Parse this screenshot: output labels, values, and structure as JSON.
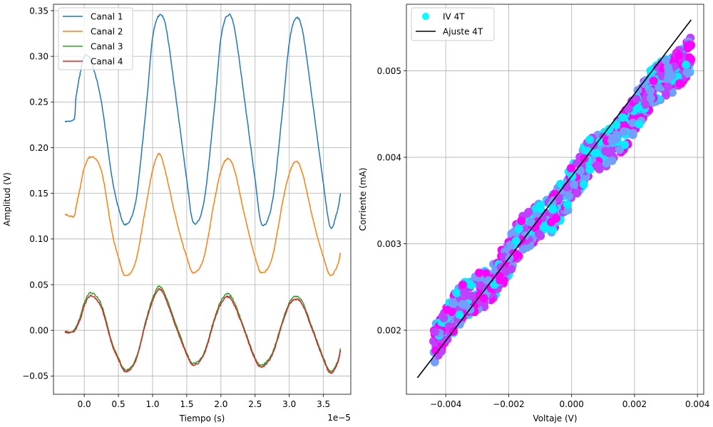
{
  "chart_data": [
    {
      "type": "line",
      "xlabel": "Tiempo (s)",
      "ylabel": "Amplitud (V)",
      "x_offset_label": "1e−5",
      "xlim": [
        -0.45,
        3.9
      ],
      "ylim": [
        -0.07,
        0.357
      ],
      "x_ticks": [
        0.0,
        0.5,
        1.0,
        1.5,
        2.0,
        2.5,
        3.0,
        3.5
      ],
      "x_tick_labels": [
        "0.0",
        "0.5",
        "1.0",
        "1.5",
        "2.0",
        "2.5",
        "3.0",
        "3.5"
      ],
      "y_ticks": [
        -0.05,
        0.0,
        0.05,
        0.1,
        0.15,
        0.2,
        0.25,
        0.3,
        0.35
      ],
      "y_tick_labels": [
        "−0.05",
        "0.00",
        "0.05",
        "0.10",
        "0.15",
        "0.20",
        "0.25",
        "0.30",
        "0.35"
      ],
      "grid": true,
      "legend_position": "top-left",
      "series": [
        {
          "name": "Canal 1",
          "color": "#1f77b4",
          "points": [
            [
              -0.28,
              0.229
            ],
            [
              -0.15,
              0.231
            ],
            [
              -0.12,
              0.255
            ],
            [
              -0.05,
              0.285
            ],
            [
              0.0,
              0.3
            ],
            [
              0.1,
              0.295
            ],
            [
              0.25,
              0.25
            ],
            [
              0.4,
              0.17
            ],
            [
              0.5,
              0.135
            ],
            [
              0.6,
              0.116
            ],
            [
              0.75,
              0.14
            ],
            [
              0.9,
              0.24
            ],
            [
              1.0,
              0.32
            ],
            [
              1.1,
              0.345
            ],
            [
              1.2,
              0.33
            ],
            [
              1.35,
              0.25
            ],
            [
              1.5,
              0.165
            ],
            [
              1.6,
              0.118
            ],
            [
              1.75,
              0.14
            ],
            [
              1.9,
              0.24
            ],
            [
              2.0,
              0.32
            ],
            [
              2.1,
              0.345
            ],
            [
              2.2,
              0.33
            ],
            [
              2.35,
              0.25
            ],
            [
              2.5,
              0.165
            ],
            [
              2.6,
              0.116
            ],
            [
              2.75,
              0.14
            ],
            [
              2.9,
              0.24
            ],
            [
              3.0,
              0.315
            ],
            [
              3.1,
              0.342
            ],
            [
              3.2,
              0.325
            ],
            [
              3.35,
              0.245
            ],
            [
              3.5,
              0.16
            ],
            [
              3.6,
              0.113
            ],
            [
              3.7,
              0.13
            ],
            [
              3.75,
              0.15
            ]
          ]
        },
        {
          "name": "Canal 2",
          "color": "#ff7f0e",
          "points": [
            [
              -0.28,
              0.127
            ],
            [
              -0.15,
              0.125
            ],
            [
              -0.12,
              0.135
            ],
            [
              -0.05,
              0.16
            ],
            [
              0.0,
              0.178
            ],
            [
              0.1,
              0.19
            ],
            [
              0.25,
              0.175
            ],
            [
              0.4,
              0.11
            ],
            [
              0.5,
              0.08
            ],
            [
              0.6,
              0.06
            ],
            [
              0.75,
              0.075
            ],
            [
              0.9,
              0.135
            ],
            [
              1.0,
              0.175
            ],
            [
              1.1,
              0.193
            ],
            [
              1.2,
              0.17
            ],
            [
              1.35,
              0.12
            ],
            [
              1.5,
              0.08
            ],
            [
              1.6,
              0.063
            ],
            [
              1.75,
              0.08
            ],
            [
              1.9,
              0.14
            ],
            [
              2.0,
              0.175
            ],
            [
              2.1,
              0.188
            ],
            [
              2.2,
              0.175
            ],
            [
              2.35,
              0.125
            ],
            [
              2.5,
              0.08
            ],
            [
              2.6,
              0.063
            ],
            [
              2.75,
              0.08
            ],
            [
              2.9,
              0.14
            ],
            [
              3.0,
              0.172
            ],
            [
              3.1,
              0.185
            ],
            [
              3.2,
              0.17
            ],
            [
              3.35,
              0.12
            ],
            [
              3.5,
              0.08
            ],
            [
              3.6,
              0.06
            ],
            [
              3.7,
              0.07
            ],
            [
              3.75,
              0.085
            ]
          ]
        },
        {
          "name": "Canal 3",
          "color": "#2ca02c",
          "points": [
            [
              -0.28,
              -0.001
            ],
            [
              -0.15,
              0.0
            ],
            [
              -0.05,
              0.017
            ],
            [
              0.0,
              0.03
            ],
            [
              0.1,
              0.041
            ],
            [
              0.25,
              0.028
            ],
            [
              0.4,
              -0.012
            ],
            [
              0.5,
              -0.03
            ],
            [
              0.6,
              -0.043
            ],
            [
              0.75,
              -0.032
            ],
            [
              0.9,
              0.01
            ],
            [
              1.0,
              0.035
            ],
            [
              1.1,
              0.048
            ],
            [
              1.2,
              0.036
            ],
            [
              1.35,
              0.005
            ],
            [
              1.5,
              -0.025
            ],
            [
              1.6,
              -0.036
            ],
            [
              1.75,
              -0.025
            ],
            [
              1.9,
              0.012
            ],
            [
              2.0,
              0.032
            ],
            [
              2.1,
              0.04
            ],
            [
              2.2,
              0.03
            ],
            [
              2.35,
              0.0
            ],
            [
              2.5,
              -0.03
            ],
            [
              2.6,
              -0.038
            ],
            [
              2.75,
              -0.025
            ],
            [
              2.9,
              0.01
            ],
            [
              3.0,
              0.03
            ],
            [
              3.1,
              0.037
            ],
            [
              3.2,
              0.03
            ],
            [
              3.35,
              0.0
            ],
            [
              3.5,
              -0.03
            ],
            [
              3.6,
              -0.045
            ],
            [
              3.7,
              -0.035
            ],
            [
              3.75,
              -0.02
            ]
          ]
        },
        {
          "name": "Canal 4",
          "color": "#d62728",
          "points": [
            [
              -0.28,
              -0.002
            ],
            [
              -0.15,
              -0.001
            ],
            [
              -0.05,
              0.014
            ],
            [
              0.0,
              0.027
            ],
            [
              0.1,
              0.038
            ],
            [
              0.25,
              0.025
            ],
            [
              0.4,
              -0.014
            ],
            [
              0.5,
              -0.032
            ],
            [
              0.6,
              -0.045
            ],
            [
              0.75,
              -0.034
            ],
            [
              0.9,
              0.008
            ],
            [
              1.0,
              0.032
            ],
            [
              1.1,
              0.045
            ],
            [
              1.2,
              0.033
            ],
            [
              1.35,
              0.002
            ],
            [
              1.5,
              -0.027
            ],
            [
              1.6,
              -0.038
            ],
            [
              1.75,
              -0.027
            ],
            [
              1.9,
              0.01
            ],
            [
              2.0,
              0.029
            ],
            [
              2.1,
              0.037
            ],
            [
              2.2,
              0.027
            ],
            [
              2.35,
              -0.002
            ],
            [
              2.5,
              -0.032
            ],
            [
              2.6,
              -0.04
            ],
            [
              2.75,
              -0.027
            ],
            [
              2.9,
              0.008
            ],
            [
              3.0,
              0.028
            ],
            [
              3.1,
              0.034
            ],
            [
              3.2,
              0.027
            ],
            [
              3.35,
              -0.002
            ],
            [
              3.5,
              -0.032
            ],
            [
              3.6,
              -0.047
            ],
            [
              3.7,
              -0.037
            ],
            [
              3.75,
              -0.022
            ]
          ]
        }
      ]
    },
    {
      "type": "scatter",
      "xlabel": "Voltaje (V)",
      "ylabel": "Corriente (mA)",
      "xlim": [
        -0.00525,
        0.0042
      ],
      "ylim": [
        0.00126,
        0.00577
      ],
      "x_ticks": [
        -0.004,
        -0.002,
        0.0,
        0.002,
        0.004
      ],
      "x_tick_labels": [
        "−0.004",
        "−0.002",
        "0.000",
        "0.002",
        "0.004"
      ],
      "y_ticks": [
        0.002,
        0.003,
        0.004,
        0.005
      ],
      "y_tick_labels": [
        "0.002",
        "0.003",
        "0.004",
        "0.005"
      ],
      "grid": true,
      "legend_position": "top-left",
      "series": [
        {
          "name": "IV 4T",
          "color": "#00ffff",
          "cloud_gradient": [
            "#00eeff",
            "#6fa0ff",
            "#c040ff",
            "#ff00ff"
          ],
          "x_range": [
            -0.0044,
            0.0038
          ],
          "center_line": {
            "slope": 0.4118,
            "intercept": 0.00368
          },
          "spread_mA": 0.00022
        },
        {
          "name": "Ajuste 4T",
          "color": "#000000",
          "points": [
            [
              -0.0049,
              0.00145
            ],
            [
              0.0038,
              0.00559
            ]
          ]
        }
      ]
    }
  ]
}
